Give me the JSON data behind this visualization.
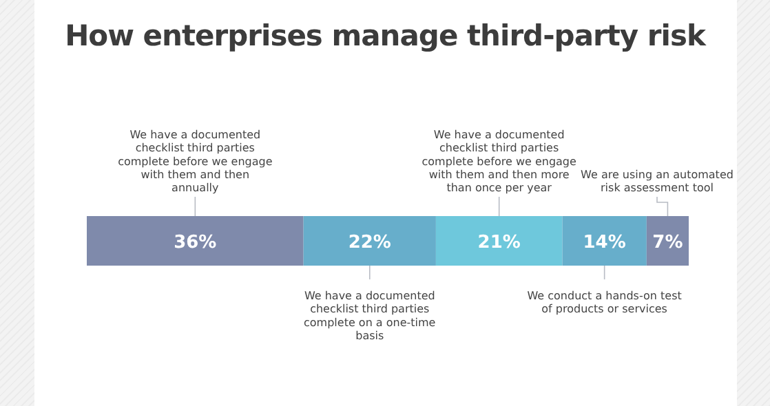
{
  "chart_data": {
    "type": "bar",
    "title": "How enterprises manage third-party risk",
    "orientation": "horizontal",
    "stacked": true,
    "categories": [
      null
    ],
    "xlim": [
      0,
      100
    ],
    "tick_labels": false,
    "grid": false,
    "legend": false,
    "series": [
      {
        "name": "We have a documented checklist third parties complete before we engage with them and then annually",
        "color": "#7f8aab",
        "values": [
          36
        ],
        "value_labels": [
          "36%"
        ]
      },
      {
        "name": "We have a documented checklist third parties complete on a one-time basis",
        "color": "#67aecb",
        "values": [
          22
        ],
        "value_labels": [
          "22%"
        ]
      },
      {
        "name": "We have a documented checklist third parties complete before we engage with them and then more than once per year",
        "color": "#6ec8dc",
        "values": [
          21
        ],
        "value_labels": [
          "21%"
        ]
      },
      {
        "name": "We conduct a hands-on test of products or services",
        "color": "#67aecb",
        "values": [
          14
        ],
        "value_labels": [
          "14%"
        ]
      },
      {
        "name": "We are using an automated risk assessment tool",
        "color": "#7f8aab",
        "values": [
          7
        ],
        "value_labels": [
          "7%"
        ]
      }
    ]
  }
}
